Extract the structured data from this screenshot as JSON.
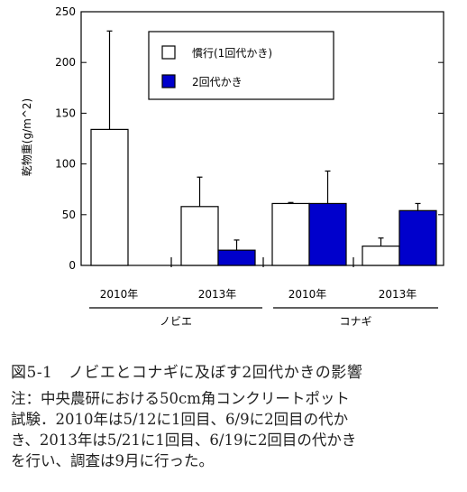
{
  "chart_data": {
    "type": "bar",
    "ylabel": "乾物重(g/m^2)",
    "ylim": [
      0,
      250
    ],
    "yticks": [
      0,
      50,
      100,
      150,
      200,
      250
    ],
    "legend": {
      "placement": "top-right",
      "entries": [
        {
          "label": "慣行(1回代かき)",
          "color": "#ffffff"
        },
        {
          "label": "2回代かき",
          "color": "#0000cc"
        }
      ]
    },
    "groups": [
      {
        "species": "ノビエ",
        "years": [
          {
            "year": "2010年",
            "conventional": 134,
            "conventional_err": 231,
            "double": 0,
            "double_err": null
          },
          {
            "year": "2013年",
            "conventional": 58,
            "conventional_err": 87,
            "double": 15,
            "double_err": 25
          }
        ]
      },
      {
        "species": "コナギ",
        "years": [
          {
            "year": "2010年",
            "conventional": 61,
            "conventional_err": 62,
            "double": 61,
            "double_err": 93
          },
          {
            "year": "2013年",
            "conventional": 19,
            "conventional_err": 27,
            "double": 54,
            "double_err": 61
          }
        ]
      }
    ]
  },
  "caption": "図5-1　ノビエとコナギに及ぼす2回代かきの影響",
  "note_lines": [
    "注：中央農研における50cm角コンクリートポット",
    "試験．2010年は5/12に1回目、6/9に2回目の代か",
    "き、2013年は5/21に1回目、6/19に2回目の代かき",
    "を行い、調査は9月に行った。"
  ]
}
